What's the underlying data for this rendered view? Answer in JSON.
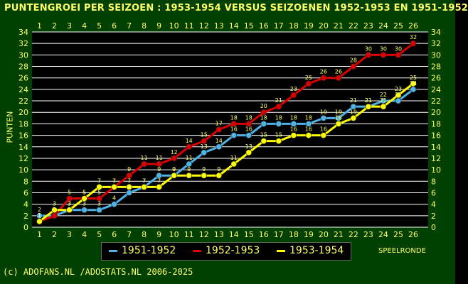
{
  "title": "PUNTENGROEI PER SEIZOEN : 1953-1954 VERSUS SEIZOENEN 1952-1953 EN 1951-1952",
  "footer": "(c) ADOFANS.NL /ADOSTATS.NL 2006-2025",
  "colors": {
    "background": "#004000",
    "plot_background": "#000000",
    "grid": "#ffffff",
    "text": "#ffff66"
  },
  "chart_data": {
    "type": "line",
    "title": "PUNTENGROEI PER SEIZOEN : 1953-1954 VERSUS SEIZOENEN 1952-1953 EN 1951-1952",
    "xlabel": "SPEELRONDE",
    "ylabel": "PUNTEN",
    "x": [
      1,
      2,
      3,
      4,
      5,
      6,
      7,
      8,
      9,
      10,
      11,
      12,
      13,
      14,
      15,
      16,
      17,
      18,
      19,
      20,
      21,
      22,
      23,
      24,
      25,
      26
    ],
    "ylim": [
      0,
      34
    ],
    "yticks": [
      0,
      2,
      4,
      6,
      8,
      10,
      12,
      14,
      16,
      18,
      20,
      22,
      24,
      26,
      28,
      30,
      32,
      34
    ],
    "grid": true,
    "legend_position": "bottom",
    "series": [
      {
        "name": "1951-1952",
        "color": "#4fb3e6",
        "values": [
          2,
          2,
          3,
          3,
          3,
          4,
          6,
          7,
          9,
          9,
          11,
          13,
          14,
          16,
          16,
          18,
          18,
          18,
          18,
          19,
          19,
          21,
          21,
          22,
          22,
          24
        ]
      },
      {
        "name": "1952-1953",
        "color": "#dd0000",
        "values": [
          1,
          2,
          5,
          5,
          5,
          7,
          9,
          11,
          11,
          12,
          14,
          15,
          17,
          18,
          18,
          20,
          21,
          23,
          25,
          26,
          26,
          28,
          30,
          30,
          30,
          32
        ]
      },
      {
        "name": "1953-1954",
        "color": "#ffff00",
        "values": [
          1,
          3,
          3,
          5,
          7,
          7,
          7,
          7,
          7,
          9,
          9,
          9,
          9,
          11,
          13,
          15,
          15,
          16,
          16,
          16,
          18,
          19,
          21,
          21,
          23,
          25
        ]
      }
    ]
  }
}
